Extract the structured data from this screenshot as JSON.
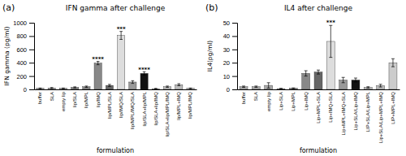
{
  "chart_data": [
    {
      "type": "bar",
      "title": "IFN gamma after challenge",
      "ylabel": "IFN gamma (pg/ml)",
      "xlabel": "formulation",
      "ylim": [
        0,
        1000
      ],
      "yticks": [
        0,
        200,
        400,
        600,
        800,
        1000
      ],
      "categories": [
        "buffer",
        "SLA",
        "empty lip",
        "lip/SLA",
        "lip/MPL",
        "lip/IMQ",
        "lip/MPL/SLA",
        "lip/IMQ/SLA",
        "lip/MPL/IMQ/SLA",
        "lip/SLA+lip/MPL",
        "lip/SLA+lip/IMQ",
        "lip/SLA+lip/MPL/IMQ",
        "lip/MPL+IMQ",
        "lip/MPL/IMQ"
      ],
      "values": [
        15,
        20,
        15,
        30,
        40,
        395,
        60,
        810,
        110,
        240,
        10,
        40,
        70,
        15
      ],
      "errors": [
        5,
        8,
        5,
        8,
        10,
        25,
        15,
        60,
        20,
        25,
        5,
        10,
        15,
        5
      ],
      "colors": [
        "#aaaaaa",
        "#aaaaaa",
        "#aaaaaa",
        "#888888",
        "#888888",
        "#888888",
        "#666666",
        "#dddddd",
        "#999999",
        "#111111",
        "#bbbbbb",
        "#bbbbbb",
        "#bbbbbb",
        "#cccccc"
      ],
      "annotations": [
        {
          "text": "(a)"
        },
        {
          "category": "lip/IMQ",
          "y": 430,
          "text": "****"
        },
        {
          "category": "lip/IMQ/SLA",
          "y": 880,
          "text": "***"
        },
        {
          "category": "lip/SLA+lip/MPL",
          "y": 268,
          "text": "****"
        }
      ]
    },
    {
      "type": "bar",
      "title": "IL4 after challenge",
      "ylabel": "IL4(pg/ml)",
      "xlabel": "formulation",
      "ylim": [
        0,
        50
      ],
      "yticks": [
        0,
        10,
        20,
        30,
        40,
        50
      ],
      "categories": [
        "buffer",
        "SLA",
        "empty lip",
        "Lip+SLA",
        "Lip+MPL",
        "Lip+IMQ",
        "Lip+MPL+SLA",
        "Lip+IMQ+SLA",
        "Lip+MPL+IMQ+SLA",
        "Lip+SLA/Lip+IMQ",
        "LIP+SLA/Lip+MPL",
        "Lip+SLA/Lip+MPL+IMQ",
        "LIP+MPL+IMQ"
      ],
      "values": [
        2,
        2,
        3,
        0.5,
        0.8,
        12,
        13,
        36,
        7,
        7,
        1.5,
        2.8,
        20
      ],
      "errors": [
        0.5,
        0.5,
        2,
        0.3,
        0.3,
        2,
        1.5,
        12,
        2,
        1.5,
        0.5,
        1,
        3
      ],
      "colors": [
        "#aaaaaa",
        "#aaaaaa",
        "#aaaaaa",
        "#888888",
        "#888888",
        "#888888",
        "#666666",
        "#dddddd",
        "#999999",
        "#111111",
        "#bbbbbb",
        "#bbbbbb",
        "#cccccc"
      ],
      "annotations": [
        {
          "text": "(b)"
        },
        {
          "category": "Lip+IMQ+SLA",
          "y": 49,
          "text": "***"
        }
      ]
    }
  ]
}
